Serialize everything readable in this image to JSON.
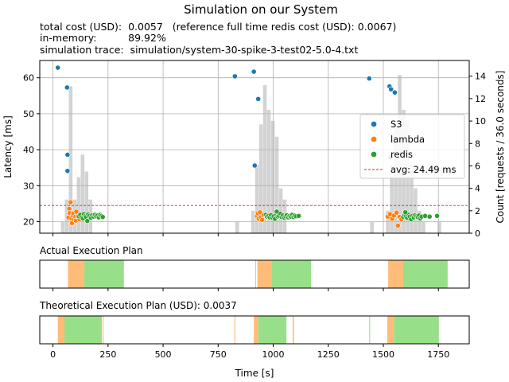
{
  "figure": {
    "title": "Simulation on our System",
    "info_lines": [
      "total cost (USD):  0.0057   (reference full time redis cost (USD): 0.0067)",
      "in-memory:          89.92%",
      "simulation trace:  simulation/system-30-spike-3-test02-5.0-4.txt"
    ]
  },
  "colors": {
    "S3": "#1f77b4",
    "lambda": "#ff7f0e",
    "redis": "#2ca02c",
    "avg_line": "#d62728",
    "histogram": "#d3d3d3",
    "grid": "#b0b0b0",
    "plan_lambda": "#ffbb78",
    "plan_redis": "#98df8a"
  },
  "chart_data": [
    {
      "type": "scatter",
      "ylabel": "Latency [ms]",
      "y2label": "Count [requests / 36.0 seconds]",
      "xlim": [
        -60,
        1890
      ],
      "ylim": [
        16.8,
        64.8
      ],
      "y2lim": [
        0,
        15.4
      ],
      "xticks": [
        0,
        250,
        500,
        750,
        1000,
        1250,
        1500,
        1750
      ],
      "yticks": [
        20,
        30,
        40,
        50,
        60
      ],
      "y2ticks": [
        0,
        2,
        4,
        6,
        8,
        10,
        12,
        14
      ],
      "grid": true,
      "legend_position": "right",
      "legend": [
        "S3",
        "lambda",
        "redis",
        "avg: 24.49 ms"
      ],
      "avg_latency": 24.49,
      "histogram": {
        "bin_width": 18,
        "bins": [
          [
            36,
            1
          ],
          [
            54,
            3
          ],
          [
            72,
            13.1
          ],
          [
            90,
            3
          ],
          [
            108,
            5
          ],
          [
            126,
            7
          ],
          [
            144,
            5.5
          ],
          [
            162,
            3
          ],
          [
            828,
            1
          ],
          [
            900,
            2
          ],
          [
            918,
            6.1
          ],
          [
            936,
            9.7
          ],
          [
            954,
            13.2
          ],
          [
            972,
            11
          ],
          [
            990,
            10
          ],
          [
            1008,
            8.6
          ],
          [
            1026,
            4
          ],
          [
            1044,
            3
          ],
          [
            1440,
            1
          ],
          [
            1512,
            2
          ],
          [
            1530,
            6.1
          ],
          [
            1548,
            9.5
          ],
          [
            1566,
            14.1
          ],
          [
            1584,
            11
          ],
          [
            1602,
            10
          ],
          [
            1620,
            6.1
          ],
          [
            1638,
            4
          ],
          [
            1656,
            2
          ],
          [
            1674,
            1
          ],
          [
            1746,
            1
          ]
        ]
      },
      "series": [
        {
          "name": "S3",
          "points": [
            [
              22,
              62.8
            ],
            [
              64,
              57.3
            ],
            [
              66,
              38.6
            ],
            [
              66,
              34.1
            ],
            [
              826,
              60.4
            ],
            [
              912,
              61.7
            ],
            [
              932,
              54.1
            ],
            [
              916,
              35.6
            ],
            [
              1436,
              59.8
            ],
            [
              1528,
              57.6
            ],
            [
              1535,
              56.8
            ],
            [
              1552,
              55.9
            ],
            [
              1533,
              37.9
            ]
          ]
        },
        {
          "name": "lambda",
          "points": [
            [
              70,
              21.1
            ],
            [
              74,
              23.6
            ],
            [
              76,
              22.4
            ],
            [
              80,
              25.4
            ],
            [
              84,
              20.9
            ],
            [
              86,
              19.6
            ],
            [
              90,
              21.7
            ],
            [
              92,
              22.3
            ],
            [
              96,
              20.6
            ],
            [
              102,
              21.4
            ],
            [
              104,
              20.3
            ],
            [
              106,
              22.8
            ],
            [
              112,
              21.5
            ],
            [
              120,
              20.7
            ],
            [
              926,
              21.6
            ],
            [
              930,
              22.3
            ],
            [
              934,
              20.8
            ],
            [
              940,
              22.6
            ],
            [
              944,
              21.2
            ],
            [
              950,
              20.5
            ],
            [
              956,
              21.9
            ],
            [
              1520,
              21.4
            ],
            [
              1530,
              22.1
            ],
            [
              1540,
              20.8
            ],
            [
              1548,
              21.7
            ],
            [
              1560,
              22.5
            ],
            [
              1566,
              18.9
            ],
            [
              1574,
              21.3
            ],
            [
              1582,
              20.6
            ]
          ]
        },
        {
          "name": "redis",
          "points": [
            [
              118,
              21.5
            ],
            [
              124,
              21.9
            ],
            [
              130,
              21.2
            ],
            [
              136,
              20.9
            ],
            [
              140,
              22.1
            ],
            [
              146,
              21.6
            ],
            [
              150,
              21.3
            ],
            [
              156,
              20.2
            ],
            [
              160,
              22.0
            ],
            [
              166,
              21.6
            ],
            [
              172,
              21.1
            ],
            [
              178,
              21.8
            ],
            [
              184,
              21.4
            ],
            [
              190,
              21.9
            ],
            [
              196,
              21.5
            ],
            [
              202,
              21.7
            ],
            [
              208,
              21.2
            ],
            [
              214,
              21.9
            ],
            [
              220,
              21.6
            ],
            [
              226,
              21.3
            ],
            [
              966,
              21.9
            ],
            [
              972,
              21.4
            ],
            [
              978,
              21.6
            ],
            [
              984,
              21.2
            ],
            [
              990,
              21.8
            ],
            [
              996,
              21.1
            ],
            [
              1002,
              21.5
            ],
            [
              1008,
              20.8
            ],
            [
              1014,
              21.9
            ],
            [
              1020,
              21.4
            ],
            [
              1026,
              21.6
            ],
            [
              1032,
              22.2
            ],
            [
              1038,
              21.3
            ],
            [
              1044,
              21.7
            ],
            [
              1050,
              21.1
            ],
            [
              1056,
              21.5
            ],
            [
              1062,
              21.8
            ],
            [
              1068,
              21.2
            ],
            [
              1074,
              21.6
            ],
            [
              1080,
              21.4
            ],
            [
              1086,
              21.9
            ],
            [
              1092,
              21.3
            ],
            [
              1098,
              21.7
            ],
            [
              1104,
              21.5
            ],
            [
              1116,
              21.6
            ],
            [
              1016,
              22.8
            ],
            [
              1590,
              21.3
            ],
            [
              1596,
              21.8
            ],
            [
              1602,
              21.5
            ],
            [
              1608,
              21.1
            ],
            [
              1614,
              21.9
            ],
            [
              1620,
              21.4
            ],
            [
              1626,
              20.7
            ],
            [
              1632,
              21.6
            ],
            [
              1638,
              21.2
            ],
            [
              1644,
              21.8
            ],
            [
              1650,
              21.5
            ],
            [
              1656,
              21.3
            ],
            [
              1662,
              21.7
            ],
            [
              1668,
              20.9
            ],
            [
              1674,
              21.4
            ],
            [
              1690,
              21.6
            ],
            [
              1710,
              21.4
            ],
            [
              1600,
              22.6
            ],
            [
              1744,
              21.6
            ]
          ]
        }
      ]
    },
    {
      "type": "timeline",
      "title": "Actual Execution Plan",
      "xlim": [
        -60,
        1890
      ],
      "segments": [
        {
          "start": 68,
          "end": 142,
          "kind": "lambda"
        },
        {
          "start": 142,
          "end": 322,
          "kind": "redis"
        },
        {
          "start": 918,
          "end": 922,
          "kind": "lambda"
        },
        {
          "start": 928,
          "end": 992,
          "kind": "lambda"
        },
        {
          "start": 992,
          "end": 1172,
          "kind": "redis"
        },
        {
          "start": 1522,
          "end": 1590,
          "kind": "lambda"
        },
        {
          "start": 1590,
          "end": 1792,
          "kind": "redis"
        }
      ]
    },
    {
      "type": "timeline",
      "title": "Theoretical Execution Plan (USD): 0.0037",
      "xlim": [
        -60,
        1890
      ],
      "xticks": [
        0,
        250,
        500,
        750,
        1000,
        1250,
        1500,
        1750
      ],
      "xlabel": "Time [s]",
      "segments": [
        {
          "start": 22,
          "end": 52,
          "kind": "lambda"
        },
        {
          "start": 52,
          "end": 222,
          "kind": "redis"
        },
        {
          "start": 226,
          "end": 230,
          "kind": "lambda"
        },
        {
          "start": 824,
          "end": 828,
          "kind": "lambda"
        },
        {
          "start": 912,
          "end": 932,
          "kind": "lambda"
        },
        {
          "start": 932,
          "end": 1060,
          "kind": "redis"
        },
        {
          "start": 1088,
          "end": 1094,
          "kind": "lambda"
        },
        {
          "start": 1436,
          "end": 1440,
          "kind": "redis"
        },
        {
          "start": 1518,
          "end": 1548,
          "kind": "lambda"
        },
        {
          "start": 1548,
          "end": 1752,
          "kind": "redis"
        }
      ]
    }
  ]
}
